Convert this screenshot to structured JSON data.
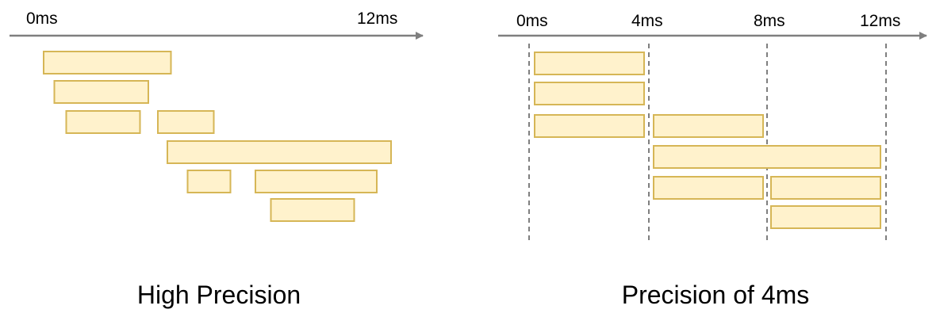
{
  "colors": {
    "axis": "#7f7f7f",
    "bar_fill": "#fff2cc",
    "bar_stroke": "#d6b656",
    "gridline": "#7f7f7f",
    "text": "#000000"
  },
  "panels": [
    {
      "id": "high-precision",
      "caption": "High Precision",
      "axis_labels": [
        "0ms",
        "12ms"
      ],
      "gridlines": false,
      "bars": [
        {
          "start": 0.0,
          "end": 5.35
        },
        {
          "start": 0.45,
          "end": 4.4
        },
        {
          "start": 0.95,
          "end": 4.05
        },
        {
          "start": 4.8,
          "end": 7.15
        },
        {
          "start": 5.2,
          "end": 14.6
        },
        {
          "start": 6.05,
          "end": 7.85
        },
        {
          "start": 8.9,
          "end": 14.0
        },
        {
          "start": 9.55,
          "end": 13.05
        }
      ]
    },
    {
      "id": "precision-4ms",
      "caption": "Precision of 4ms",
      "axis_labels": [
        "0ms",
        "4ms",
        "8ms",
        "12ms"
      ],
      "gridlines": true,
      "bars": [
        {
          "start": 0,
          "end": 4
        },
        {
          "start": 0,
          "end": 4
        },
        {
          "start": 0,
          "end": 4
        },
        {
          "start": 4,
          "end": 8
        },
        {
          "start": 4,
          "end": 12
        },
        {
          "start": 4,
          "end": 8
        },
        {
          "start": 8,
          "end": 12
        },
        {
          "start": 8,
          "end": 12
        }
      ]
    }
  ]
}
